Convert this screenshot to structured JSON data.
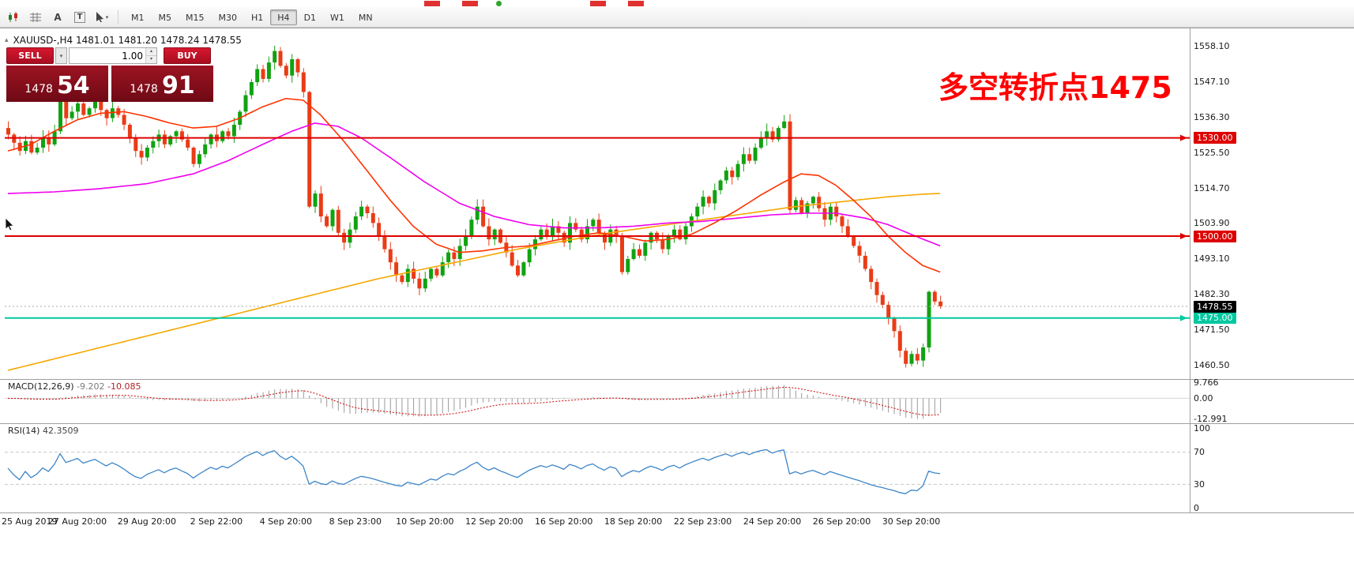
{
  "toolbar": {
    "icons": [
      {
        "name": "chart-style-icon"
      },
      {
        "name": "indicator-grid-icon"
      },
      {
        "name": "text-tool-icon",
        "glyph": "A"
      },
      {
        "name": "template-tool-icon",
        "glyph": "T"
      },
      {
        "name": "cursor-tool-icon"
      }
    ],
    "timeframes": [
      {
        "label": "M1",
        "active": false
      },
      {
        "label": "M5",
        "active": false
      },
      {
        "label": "M15",
        "active": false
      },
      {
        "label": "M30",
        "active": false
      },
      {
        "label": "H1",
        "active": false
      },
      {
        "label": "H4",
        "active": true
      },
      {
        "label": "D1",
        "active": false
      },
      {
        "label": "W1",
        "active": false
      },
      {
        "label": "MN",
        "active": false
      }
    ]
  },
  "chart": {
    "symbol_info": "XAUUSD-,H4 1481.01 1481.20 1478.24 1478.55",
    "trade_panel": {
      "sell_label": "SELL",
      "buy_label": "BUY",
      "volume": "1.00",
      "sell_price_base": "1478",
      "sell_price_big": "54",
      "buy_price_base": "1478",
      "buy_price_big": "91"
    },
    "annotation": {
      "text": "多空转折点1475",
      "color": "#ff0000"
    },
    "y_ticks": [
      "1558.10",
      "1547.10",
      "1536.30",
      "1525.50",
      "1514.70",
      "1503.90",
      "1493.10",
      "1482.30",
      "1471.50",
      "1460.50"
    ],
    "x_ticks": [
      "25 Aug 2019",
      "27 Aug 20:00",
      "29 Aug 20:00",
      "2 Sep 22:00",
      "4 Sep 20:00",
      "8 Sep 23:00",
      "10 Sep 20:00",
      "12 Sep 20:00",
      "16 Sep 20:00",
      "18 Sep 20:00",
      "22 Sep 23:00",
      "24 Sep 20:00",
      "26 Sep 20:00",
      "30 Sep 20:00"
    ],
    "levels": [
      {
        "price": 1530.0,
        "label": "1530.00",
        "color": "#dd0000"
      },
      {
        "price": 1500.0,
        "label": "1500.00",
        "color": "#dd0000"
      },
      {
        "price": 1475.0,
        "label": "1475.00",
        "color": "#00c8a0"
      }
    ],
    "current_price": {
      "value": 1478.55,
      "label": "1478.55",
      "bg": "#000000"
    }
  },
  "macd": {
    "name": "MACD(12,26,9)",
    "main": "-9.202",
    "signal": "-10.085",
    "scale": [
      "9.766",
      "0.00",
      "-12.991"
    ],
    "scale_values": [
      9.766,
      0,
      -12.991
    ]
  },
  "rsi": {
    "name": "RSI(14)",
    "value": "42.3509",
    "scale": [
      "100",
      "70",
      "30",
      "0"
    ],
    "scale_values": [
      100,
      70,
      30,
      0
    ],
    "levels": [
      70,
      30
    ]
  },
  "chart_data": {
    "type": "candlestick",
    "symbol": "XAUUSD",
    "timeframe": "H4",
    "first_open": 1533,
    "closes": [
      1531,
      1528.5,
      1526,
      1529,
      1525.5,
      1527,
      1530,
      1528,
      1532,
      1542,
      1536,
      1538,
      1540.5,
      1537,
      1539,
      1541,
      1538.5,
      1536,
      1539,
      1537,
      1534,
      1530,
      1526,
      1524,
      1527,
      1529,
      1531,
      1528,
      1530.5,
      1532,
      1529.5,
      1527,
      1522,
      1525,
      1528,
      1531,
      1529,
      1532,
      1530.5,
      1534,
      1538,
      1543,
      1547,
      1551,
      1548,
      1553,
      1556.5,
      1552,
      1549,
      1554,
      1550,
      1544,
      1509,
      1513,
      1506,
      1503,
      1508,
      1501,
      1498,
      1502,
      1506,
      1509,
      1507,
      1504,
      1500,
      1496,
      1492,
      1488,
      1486,
      1490,
      1487,
      1484,
      1487,
      1490,
      1488,
      1492,
      1495,
      1493,
      1497,
      1500,
      1505,
      1509,
      1503,
      1499,
      1502,
      1498,
      1495,
      1491,
      1488,
      1492,
      1496,
      1499,
      1502,
      1500,
      1503,
      1501,
      1498,
      1504,
      1502,
      1499,
      1503,
      1505,
      1501,
      1498,
      1502,
      1500,
      1489,
      1493,
      1496,
      1494,
      1498,
      1501,
      1499,
      1496,
      1500,
      1502,
      1499,
      1503,
      1506,
      1509,
      1512,
      1510,
      1514,
      1517,
      1520,
      1518,
      1522,
      1525,
      1523,
      1527,
      1530,
      1532,
      1529.5,
      1533,
      1535,
      1508,
      1511,
      1507,
      1510,
      1512,
      1508.5,
      1505,
      1509,
      1506,
      1503,
      1500,
      1497,
      1494,
      1490,
      1486,
      1482,
      1479,
      1475,
      1471,
      1465,
      1461,
      1464,
      1462,
      1466,
      1483,
      1480,
      1478.55
    ],
    "colors": {
      "up": "#11a211",
      "down": "#e93c16",
      "macd_hist": "#9a9a9a",
      "macd_signal": "#cc0000",
      "rsi": "#3d85c8"
    },
    "mas": [
      {
        "name": "ma-gold",
        "color": "#f5a800",
        "width": 1.6,
        "points": [
          [
            0,
            1459
          ],
          [
            8,
            1462.5
          ],
          [
            16,
            1466
          ],
          [
            24,
            1469.5
          ],
          [
            32,
            1473
          ],
          [
            40,
            1476.5
          ],
          [
            48,
            1480
          ],
          [
            56,
            1483.5
          ],
          [
            64,
            1487
          ],
          [
            72,
            1490
          ],
          [
            80,
            1493
          ],
          [
            88,
            1496
          ],
          [
            96,
            1498.5
          ],
          [
            104,
            1501
          ],
          [
            112,
            1503
          ],
          [
            120,
            1505
          ],
          [
            128,
            1507
          ],
          [
            136,
            1509
          ],
          [
            144,
            1510.5
          ],
          [
            152,
            1512
          ],
          [
            158,
            1512.8
          ],
          [
            161,
            1513
          ]
        ]
      },
      {
        "name": "ma-magenta",
        "color": "#ee00ee",
        "width": 1.6,
        "points": [
          [
            0,
            1513
          ],
          [
            8,
            1513.5
          ],
          [
            16,
            1514.5
          ],
          [
            24,
            1516
          ],
          [
            32,
            1519
          ],
          [
            38,
            1523
          ],
          [
            44,
            1528
          ],
          [
            49,
            1532
          ],
          [
            53,
            1534.5
          ],
          [
            57,
            1533.5
          ],
          [
            61,
            1530
          ],
          [
            66,
            1524
          ],
          [
            72,
            1516.5
          ],
          [
            78,
            1510
          ],
          [
            84,
            1506
          ],
          [
            90,
            1503.5
          ],
          [
            96,
            1502.5
          ],
          [
            102,
            1502.5
          ],
          [
            108,
            1503
          ],
          [
            114,
            1504
          ],
          [
            120,
            1504.5
          ],
          [
            126,
            1505.5
          ],
          [
            132,
            1506.5
          ],
          [
            138,
            1507
          ],
          [
            143,
            1507
          ],
          [
            148,
            1505.5
          ],
          [
            152,
            1503.5
          ],
          [
            156,
            1500.5
          ],
          [
            161,
            1497
          ]
        ]
      },
      {
        "name": "ma-red",
        "color": "#ff3300",
        "width": 1.6,
        "points": [
          [
            0,
            1526
          ],
          [
            4,
            1528
          ],
          [
            8,
            1532
          ],
          [
            12,
            1535.5
          ],
          [
            16,
            1537.5
          ],
          [
            20,
            1538
          ],
          [
            24,
            1536.5
          ],
          [
            28,
            1534.5
          ],
          [
            32,
            1533
          ],
          [
            36,
            1533.5
          ],
          [
            40,
            1536
          ],
          [
            44,
            1539.5
          ],
          [
            48,
            1542
          ],
          [
            51,
            1541.5
          ],
          [
            54,
            1537
          ],
          [
            58,
            1529
          ],
          [
            62,
            1520
          ],
          [
            66,
            1511
          ],
          [
            70,
            1503
          ],
          [
            74,
            1497.5
          ],
          [
            78,
            1495
          ],
          [
            82,
            1495.5
          ],
          [
            86,
            1496.5
          ],
          [
            90,
            1497
          ],
          [
            94,
            1498.5
          ],
          [
            98,
            1500
          ],
          [
            102,
            1501
          ],
          [
            106,
            1500
          ],
          [
            110,
            1498.5
          ],
          [
            114,
            1499
          ],
          [
            118,
            1500.5
          ],
          [
            122,
            1504
          ],
          [
            126,
            1508
          ],
          [
            130,
            1512.5
          ],
          [
            134,
            1516.5
          ],
          [
            137,
            1519
          ],
          [
            140,
            1518.5
          ],
          [
            143,
            1515.5
          ],
          [
            146,
            1511
          ],
          [
            149,
            1506
          ],
          [
            152,
            1500
          ],
          [
            155,
            1495
          ],
          [
            158,
            1491
          ],
          [
            161,
            1489
          ]
        ]
      }
    ]
  }
}
